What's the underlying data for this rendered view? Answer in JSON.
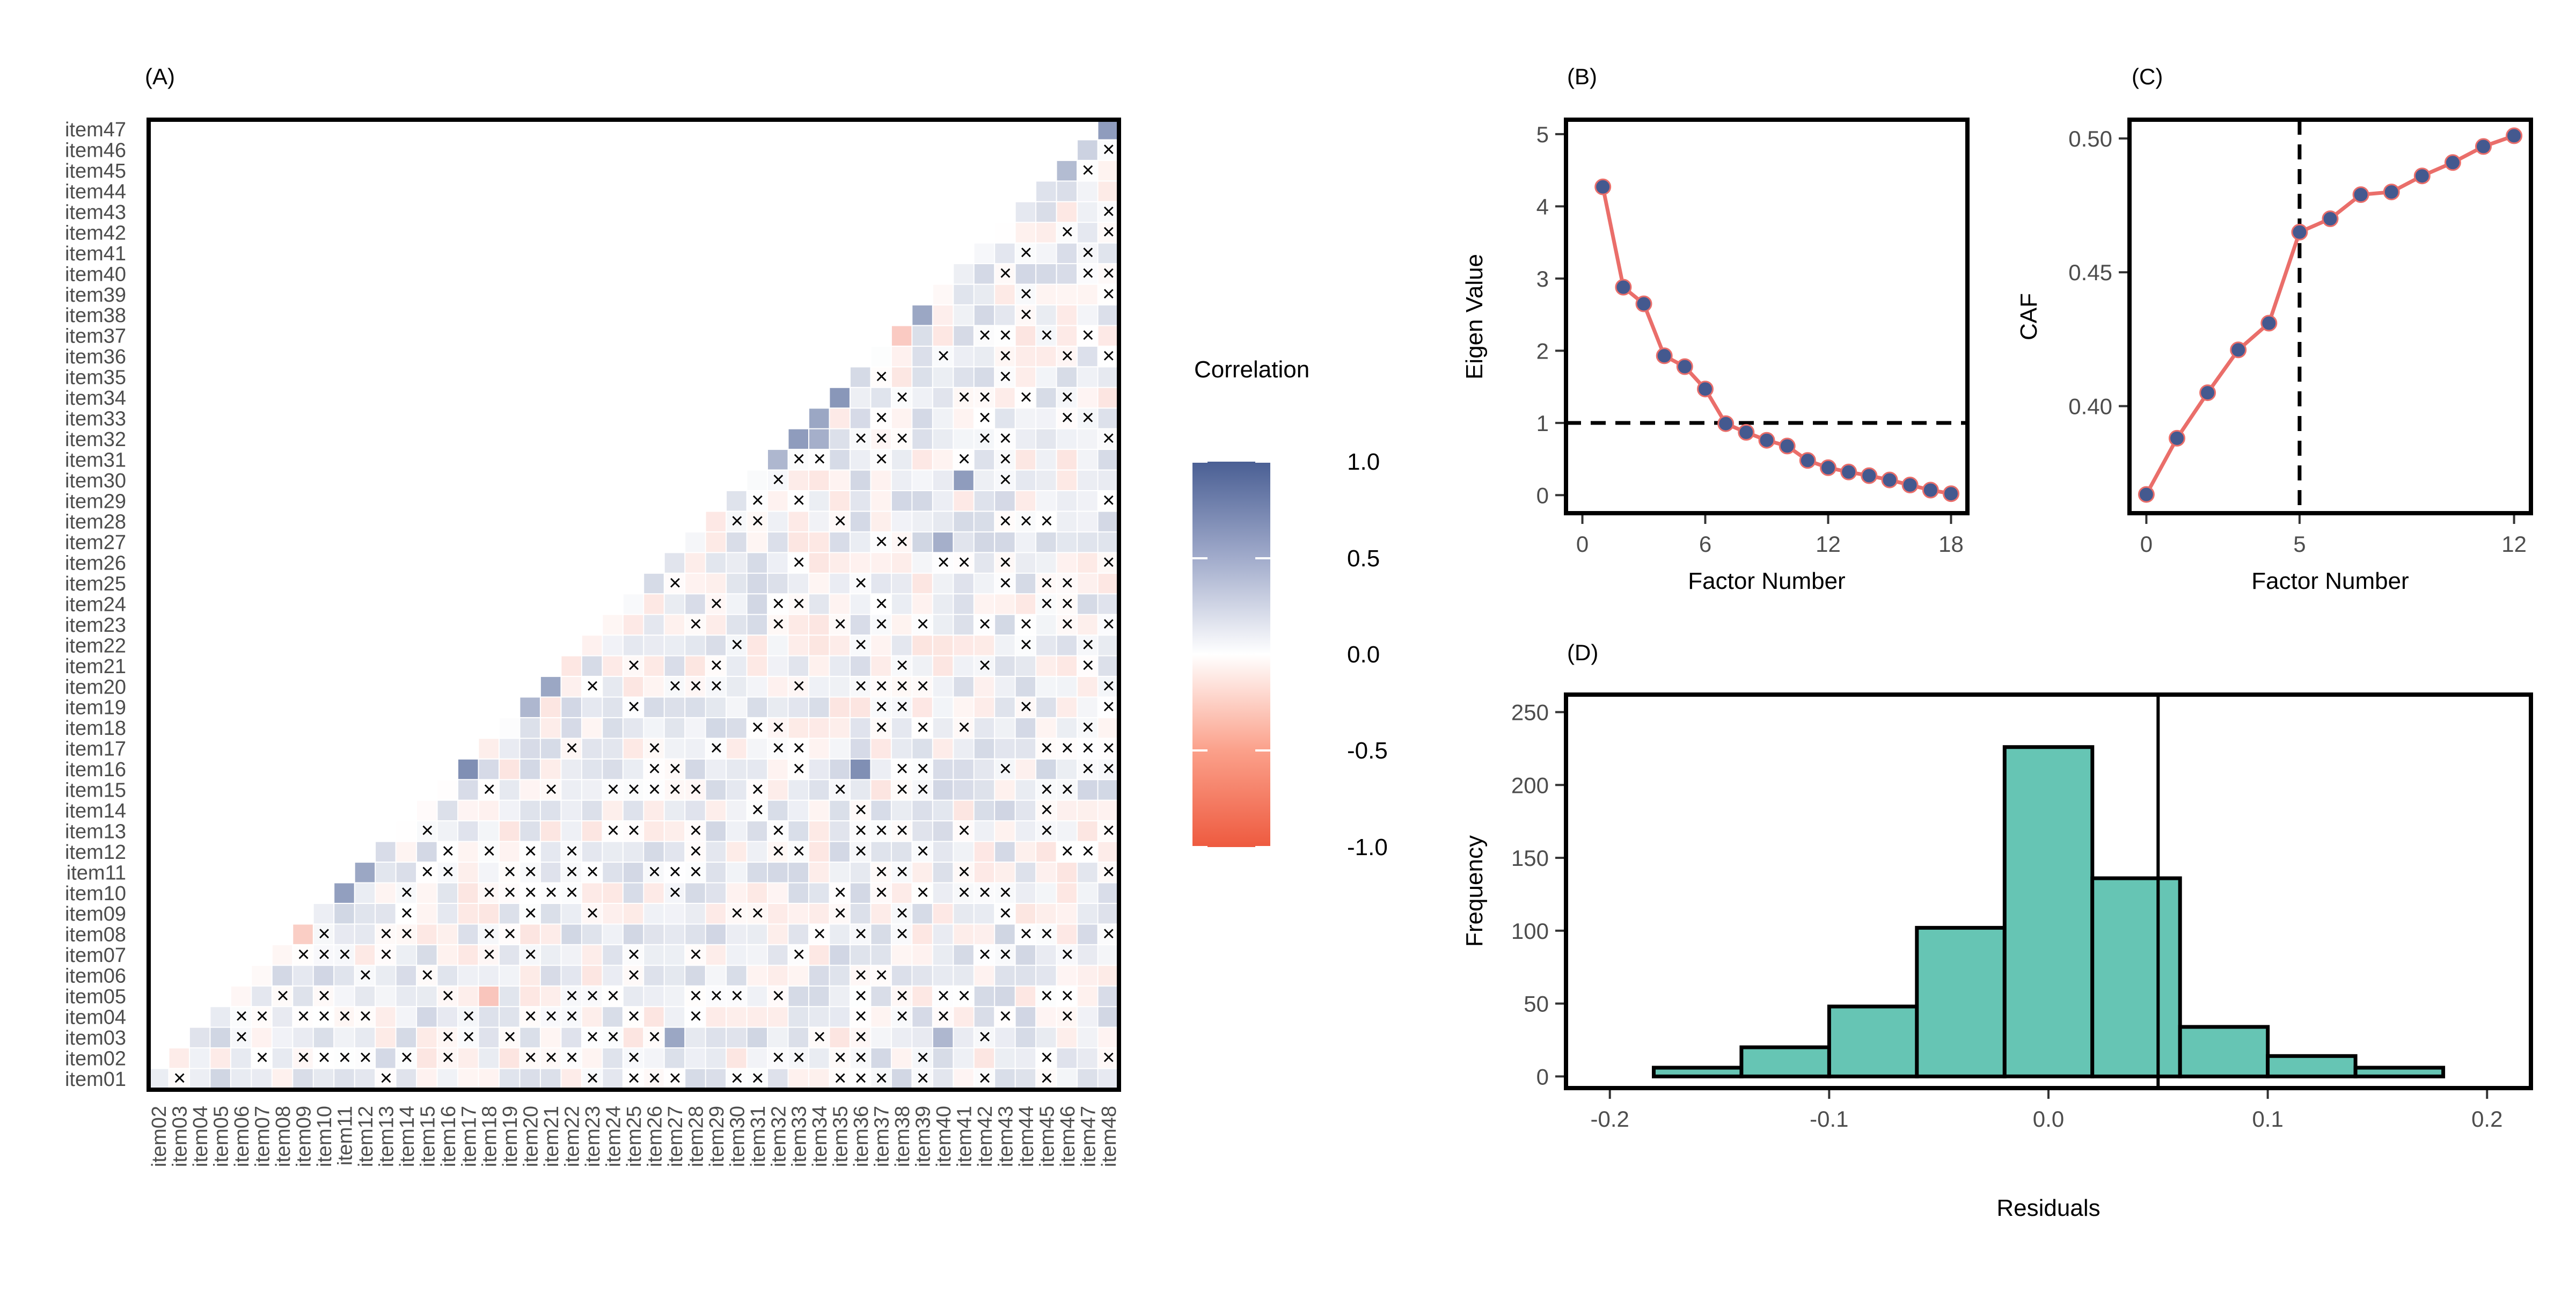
{
  "panels": {
    "A": {
      "tag": "(A)"
    },
    "B": {
      "tag": "(B)"
    },
    "C": {
      "tag": "(C)"
    },
    "D": {
      "tag": "(D)"
    }
  },
  "colors": {
    "positive": "#4a5f94",
    "neutral": "#ffffff",
    "negative": "#ee5a3f",
    "line": "#ea6e6a",
    "point": "#44598f",
    "bar_fill": "#66c5b4",
    "frame": "#000000"
  },
  "chart_data": [
    {
      "id": "A",
      "type": "heatmap",
      "title": "",
      "y_labels": [
        "item01",
        "item02",
        "item03",
        "item04",
        "item05",
        "item06",
        "item07",
        "item08",
        "item09",
        "item10",
        "item11",
        "item12",
        "item13",
        "item14",
        "item15",
        "item16",
        "item17",
        "item18",
        "item19",
        "item20",
        "item21",
        "item22",
        "item23",
        "item24",
        "item25",
        "item26",
        "item27",
        "item28",
        "item29",
        "item30",
        "item31",
        "item32",
        "item33",
        "item34",
        "item35",
        "item36",
        "item37",
        "item38",
        "item39",
        "item40",
        "item41",
        "item42",
        "item43",
        "item44",
        "item45",
        "item46",
        "item47"
      ],
      "x_labels": [
        "item02",
        "item03",
        "item04",
        "item05",
        "item06",
        "item07",
        "item08",
        "item09",
        "item10",
        "item11",
        "item12",
        "item13",
        "item14",
        "item15",
        "item16",
        "item17",
        "item18",
        "item19",
        "item20",
        "item21",
        "item22",
        "item23",
        "item24",
        "item25",
        "item26",
        "item27",
        "item28",
        "item29",
        "item30",
        "item31",
        "item32",
        "item33",
        "item34",
        "item35",
        "item36",
        "item37",
        "item38",
        "item39",
        "item40",
        "item41",
        "item42",
        "item43",
        "item44",
        "item45",
        "item46",
        "item47",
        "item48"
      ],
      "layout": "lower-triangle",
      "non_significant_marker": "×",
      "legend": {
        "title": "Correlation",
        "ticks": [
          "1.0",
          "0.5",
          "0.0",
          "-0.5",
          "-1.0"
        ],
        "range": [
          -1,
          1
        ],
        "position": "right"
      },
      "highlighted_values": [
        {
          "row": "item47",
          "col": "item48",
          "value": 0.62
        },
        {
          "row": "item46",
          "col": "item47",
          "value": 0.28
        },
        {
          "row": "item45",
          "col": "item46",
          "value": 0.42
        },
        {
          "row": "item41",
          "col": "item42",
          "value": 0.05
        },
        {
          "row": "item38",
          "col": "item39",
          "value": 0.55
        },
        {
          "row": "item37",
          "col": "item38",
          "value": -0.32
        },
        {
          "row": "item34",
          "col": "item35",
          "value": 0.65
        },
        {
          "row": "item33",
          "col": "item34",
          "value": 0.55
        },
        {
          "row": "item32",
          "col": "item33",
          "value": 0.62
        },
        {
          "row": "item32",
          "col": "item34",
          "value": 0.5
        },
        {
          "row": "item31",
          "col": "item32",
          "value": 0.45
        },
        {
          "row": "item30",
          "col": "item41",
          "value": 0.62
        },
        {
          "row": "item27",
          "col": "item40",
          "value": 0.5
        },
        {
          "row": "item20",
          "col": "item21",
          "value": 0.55
        },
        {
          "row": "item19",
          "col": "item20",
          "value": 0.45
        },
        {
          "row": "item16",
          "col": "item17",
          "value": 0.7
        },
        {
          "row": "item16",
          "col": "item36",
          "value": 0.7
        },
        {
          "row": "item11",
          "col": "item12",
          "value": 0.55
        },
        {
          "row": "item10",
          "col": "item11",
          "value": 0.6
        },
        {
          "row": "item08",
          "col": "item09",
          "value": -0.3
        },
        {
          "row": "item05",
          "col": "item18",
          "value": -0.35
        },
        {
          "row": "item03",
          "col": "item27",
          "value": 0.55
        },
        {
          "row": "item03",
          "col": "item40",
          "value": 0.45
        }
      ]
    },
    {
      "id": "B",
      "type": "line",
      "title": "",
      "xlabel": "Factor Number",
      "ylabel": "Eigen Value",
      "x": [
        1,
        2,
        3,
        4,
        5,
        6,
        7,
        8,
        9,
        10,
        11,
        12,
        13,
        14,
        15,
        16,
        17,
        18
      ],
      "y": [
        4.27,
        2.88,
        2.65,
        1.93,
        1.78,
        1.47,
        0.99,
        0.87,
        0.76,
        0.68,
        0.48,
        0.38,
        0.32,
        0.27,
        0.21,
        0.14,
        0.07,
        0.02
      ],
      "xlim": [
        -0.8,
        18.8
      ],
      "ylim": [
        -0.25,
        5.2
      ],
      "xticks": [
        "0",
        "6",
        "12",
        "18"
      ],
      "yticks": [
        "0",
        "1",
        "2",
        "3",
        "4",
        "5"
      ],
      "reference_line": {
        "axis": "y",
        "value": 1,
        "style": "dashed"
      }
    },
    {
      "id": "C",
      "type": "line",
      "title": "",
      "xlabel": "Factor Number",
      "ylabel": "CAF",
      "x": [
        0,
        1,
        2,
        3,
        4,
        5,
        6,
        7,
        8,
        9,
        10,
        11,
        12
      ],
      "y": [
        0.367,
        0.388,
        0.405,
        0.421,
        0.431,
        0.465,
        0.47,
        0.479,
        0.48,
        0.486,
        0.491,
        0.497,
        0.501
      ],
      "xlim": [
        -0.55,
        12.55
      ],
      "ylim": [
        0.36,
        0.507
      ],
      "xticks": [
        "0",
        "5",
        "12"
      ],
      "yticks": [
        "0.40",
        "0.45",
        "0.50"
      ],
      "reference_line": {
        "axis": "x",
        "value": 5,
        "style": "dashed"
      }
    },
    {
      "id": "D",
      "type": "bar",
      "title": "",
      "xlabel": "Residuals",
      "ylabel": "Frequency",
      "bin_edges": [
        -0.18,
        -0.14,
        -0.1,
        -0.06,
        -0.02,
        0.02,
        0.06,
        0.1,
        0.14,
        0.18
      ],
      "values": [
        6,
        20,
        48,
        102,
        226,
        136,
        34,
        14,
        6
      ],
      "xlim": [
        -0.22,
        0.22
      ],
      "ylim": [
        -8,
        262
      ],
      "xticks": [
        "-0.2",
        "-0.1",
        "0.0",
        "0.1",
        "0.2"
      ],
      "yticks": [
        "0",
        "50",
        "100",
        "150",
        "200",
        "250"
      ],
      "reference_line": {
        "axis": "x",
        "value": 0.05,
        "style": "solid"
      }
    }
  ]
}
